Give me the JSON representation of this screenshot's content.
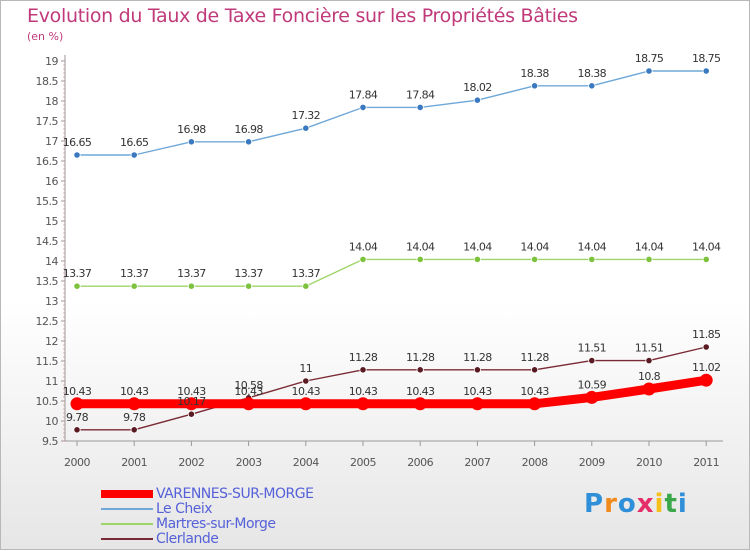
{
  "header": {
    "title": "Evolution du Taux de Taxe Foncière sur les Propriétés Bâties",
    "subtitle": "(en %)"
  },
  "logo": {
    "text": "Proxiti",
    "colors": [
      "#2f8fd8",
      "#f08a1c",
      "#2f8fd8",
      "#e52d6a",
      "#f6c01a",
      "#3aa84a",
      "#2f8fd8"
    ]
  },
  "chart_data": {
    "type": "line",
    "x": [
      "2000",
      "2001",
      "2002",
      "2003",
      "2004",
      "2005",
      "2006",
      "2007",
      "2008",
      "2009",
      "2010",
      "2011"
    ],
    "ylim": [
      9.5,
      19
    ],
    "y_ticks": [
      "9.5",
      "10",
      "10.5",
      "11",
      "11.5",
      "12",
      "12.5",
      "13",
      "13.5",
      "14",
      "14.5",
      "15",
      "15.5",
      "16",
      "16.5",
      "17",
      "17.5",
      "18",
      "18.5",
      "19"
    ],
    "grid": false,
    "series": [
      {
        "name": "VARENNES-SUR-MORGE",
        "color": "#ff0000",
        "thick": true,
        "values": [
          10.43,
          10.43,
          10.43,
          10.43,
          10.43,
          10.43,
          10.43,
          10.43,
          10.43,
          10.59,
          10.8,
          11.02
        ],
        "labels": [
          "10.43",
          "10.43",
          "10.43",
          "10.43",
          "10.43",
          "10.43",
          "10.43",
          "10.43",
          "10.43",
          "10.59",
          "10.8",
          "11.02"
        ]
      },
      {
        "name": "Le Cheix",
        "color": "#6fa8d8",
        "point_color": "#3a78c0",
        "values": [
          16.65,
          16.65,
          16.98,
          16.98,
          17.32,
          17.84,
          17.84,
          18.02,
          18.38,
          18.38,
          18.75,
          18.75
        ],
        "labels": [
          "16.65",
          "16.65",
          "16.98",
          "16.98",
          "17.32",
          "17.84",
          "17.84",
          "18.02",
          "18.38",
          "18.38",
          "18.75",
          "18.75"
        ]
      },
      {
        "name": "Martres-sur-Morge",
        "color": "#9fd46a",
        "point_color": "#7cc23c",
        "values": [
          13.37,
          13.37,
          13.37,
          13.37,
          13.37,
          14.04,
          14.04,
          14.04,
          14.04,
          14.04,
          14.04,
          14.04
        ],
        "labels": [
          "13.37",
          "13.37",
          "13.37",
          "13.37",
          "13.37",
          "14.04",
          "14.04",
          "14.04",
          "14.04",
          "14.04",
          "14.04",
          "14.04"
        ]
      },
      {
        "name": "Clerlande",
        "color": "#7a2a34",
        "point_color": "#5a1a22",
        "values": [
          9.78,
          9.78,
          10.17,
          10.58,
          11,
          11.28,
          11.28,
          11.28,
          11.28,
          11.51,
          11.51,
          11.85
        ],
        "labels": [
          "9.78",
          "9.78",
          "10.17",
          "10.58",
          "11",
          "11.28",
          "11.28",
          "11.28",
          "11.28",
          "11.51",
          "11.51",
          "11.85"
        ]
      }
    ]
  }
}
